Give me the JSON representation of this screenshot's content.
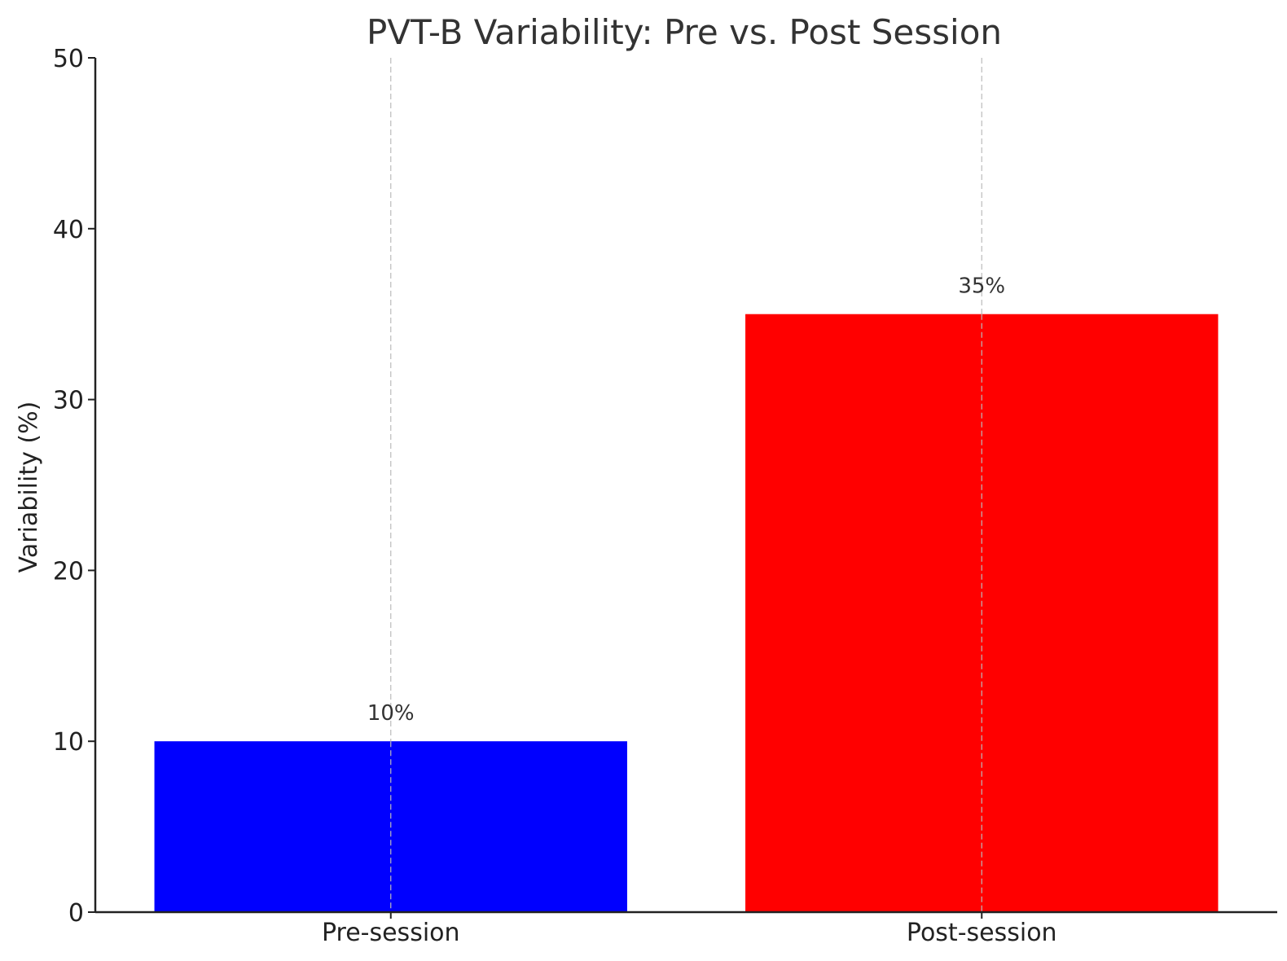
{
  "chart_data": {
    "type": "bar",
    "title": "PVT-B Variability: Pre vs. Post Session",
    "xlabel": "",
    "ylabel": "Variability (%)",
    "categories": [
      "Pre-session",
      "Post-session"
    ],
    "values": [
      10,
      35
    ],
    "value_labels": [
      "10%",
      "35%"
    ],
    "colors": [
      "#0000ff",
      "#ff0000"
    ],
    "ylim": [
      0,
      50
    ],
    "yticks": [
      0,
      10,
      20,
      30,
      40,
      50
    ],
    "grid": "x-axis dashed vertical",
    "legend": "none"
  }
}
